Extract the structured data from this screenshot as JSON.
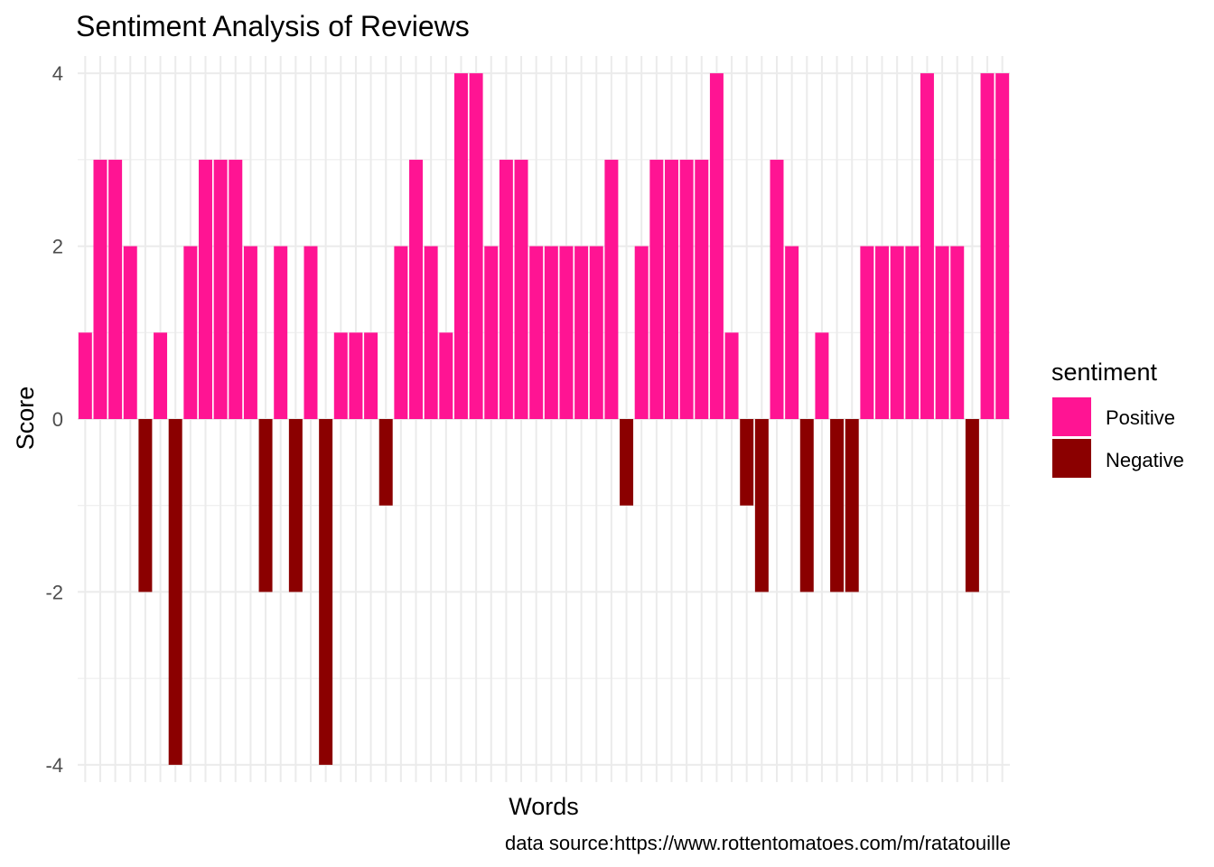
{
  "chart_data": {
    "type": "bar",
    "title": "Sentiment Analysis of Reviews",
    "xlabel": "Words",
    "ylabel": "Score",
    "caption": "data source:https://www.rottentomatoes.com/m/ratatouille",
    "ylim": [
      -4.2,
      4.2
    ],
    "yticks": [
      {
        "value": -4,
        "label": "-4"
      },
      {
        "value": -2,
        "label": "-2"
      },
      {
        "value": 0,
        "label": "0"
      },
      {
        "value": 2,
        "label": "2"
      },
      {
        "value": 4,
        "label": "4"
      }
    ],
    "grid": true,
    "x_tick_labels_visible": false,
    "legend": {
      "title": "sentiment",
      "position": "right",
      "entries": [
        {
          "label": "Positive",
          "color": "#ff1493"
        },
        {
          "label": "Negative",
          "color": "#8b0000"
        }
      ]
    },
    "colors": {
      "Positive": "#ff1493",
      "Negative": "#8b0000",
      "grid": "#ebebeb"
    },
    "values": [
      1,
      3,
      3,
      2,
      -2,
      1,
      -4,
      2,
      3,
      3,
      3,
      2,
      -2,
      2,
      -2,
      2,
      -4,
      1,
      1,
      1,
      -1,
      2,
      3,
      2,
      1,
      4,
      4,
      2,
      3,
      3,
      2,
      2,
      2,
      2,
      2,
      3,
      -1,
      2,
      3,
      3,
      3,
      3,
      4,
      1,
      -1,
      -2,
      3,
      2,
      -2,
      1,
      -2,
      -2,
      2,
      2,
      2,
      2,
      4,
      2,
      2,
      -2,
      4,
      4
    ]
  }
}
